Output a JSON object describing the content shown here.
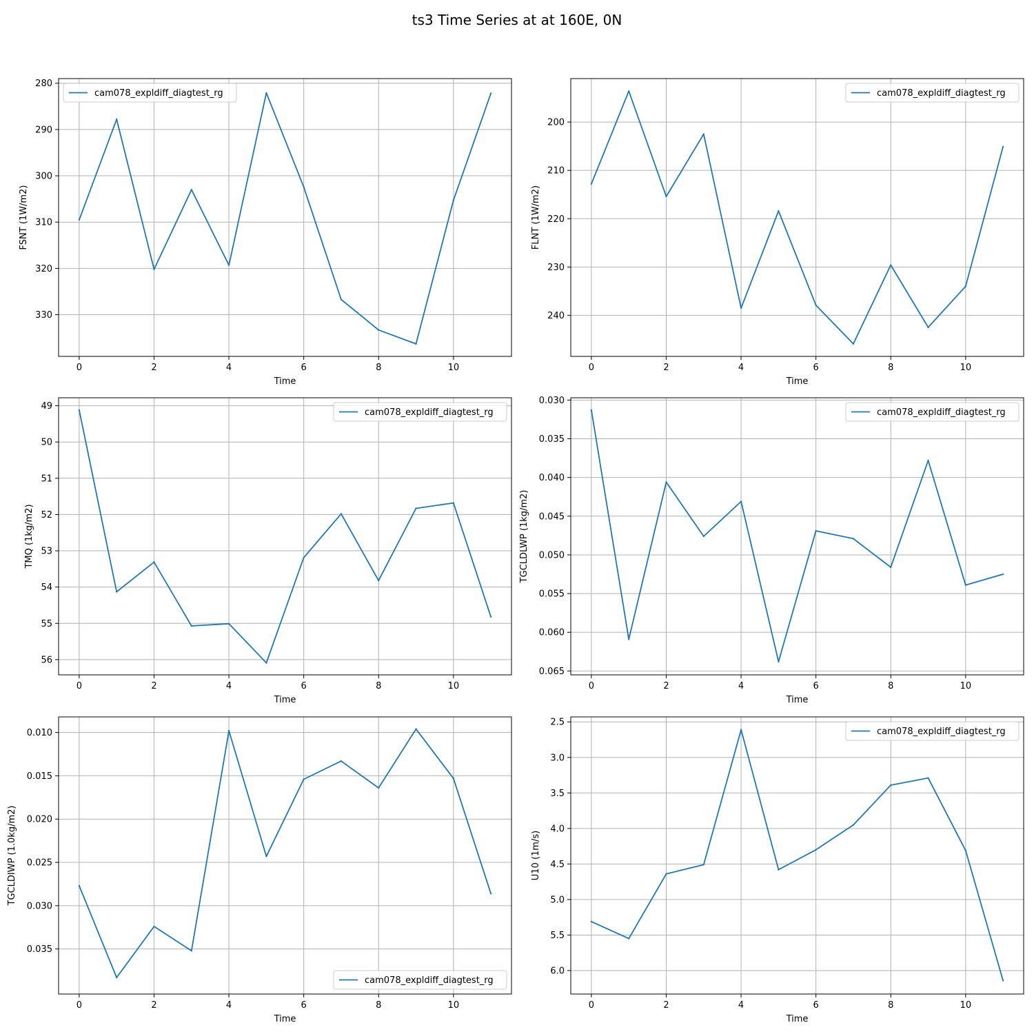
{
  "figure": {
    "title": "ts3 Time Series at at 160E, 0N",
    "line_color": "#1f77b4",
    "grid_color": "#b0b0b0"
  },
  "chart_data": [
    {
      "type": "line",
      "xlabel": "Time",
      "ylabel": "FSNT (1W/m2)",
      "xlim": [
        -0.55,
        11.55
      ],
      "ylim": [
        339,
        279
      ],
      "y_inverted": true,
      "x_ticks": [
        0,
        2,
        4,
        6,
        8,
        10
      ],
      "y_ticks": [
        280,
        290,
        300,
        310,
        320,
        330
      ],
      "y_tick_labels": [
        "280",
        "290",
        "300",
        "310",
        "320",
        "330"
      ],
      "grid": true,
      "legend_position": "upper left",
      "series": [
        {
          "name": "cam078_expldiff_diagtest_rg",
          "x": [
            0,
            1,
            2,
            3,
            4,
            5,
            6,
            7,
            8,
            9,
            10,
            11
          ],
          "y": [
            309.5,
            287.8,
            320.2,
            303.0,
            319.3,
            282.1,
            302.4,
            326.7,
            333.3,
            336.3,
            305.3,
            282.2
          ]
        }
      ]
    },
    {
      "type": "line",
      "xlabel": "Time",
      "ylabel": "FLNT (1W/m2)",
      "xlim": [
        -0.55,
        11.55
      ],
      "ylim": [
        248.5,
        191
      ],
      "y_inverted": true,
      "x_ticks": [
        0,
        2,
        4,
        6,
        8,
        10
      ],
      "y_ticks": [
        200,
        210,
        220,
        230,
        240
      ],
      "y_tick_labels": [
        "200",
        "210",
        "220",
        "230",
        "240"
      ],
      "grid": true,
      "legend_position": "upper right",
      "series": [
        {
          "name": "cam078_expldiff_diagtest_rg",
          "x": [
            0,
            1,
            2,
            3,
            4,
            5,
            6,
            7,
            8,
            9,
            10,
            11
          ],
          "y": [
            212.8,
            193.6,
            215.4,
            202.5,
            238.5,
            218.4,
            237.9,
            245.9,
            229.6,
            242.5,
            234.0,
            205.1
          ]
        }
      ]
    },
    {
      "type": "line",
      "xlabel": "Time",
      "ylabel": "TMQ (1kg/m2)",
      "xlim": [
        -0.55,
        11.55
      ],
      "ylim": [
        56.42,
        48.78
      ],
      "y_inverted": true,
      "x_ticks": [
        0,
        2,
        4,
        6,
        8,
        10
      ],
      "y_ticks": [
        49,
        50,
        51,
        52,
        53,
        54,
        55,
        56
      ],
      "y_tick_labels": [
        "49",
        "50",
        "51",
        "52",
        "53",
        "54",
        "55",
        "56"
      ],
      "grid": true,
      "legend_position": "upper right",
      "series": [
        {
          "name": "cam078_expldiff_diagtest_rg",
          "x": [
            0,
            1,
            2,
            3,
            4,
            5,
            6,
            7,
            8,
            9,
            10,
            11
          ],
          "y": [
            49.12,
            54.13,
            53.31,
            55.07,
            55.01,
            56.09,
            53.19,
            51.98,
            53.82,
            51.83,
            51.68,
            54.82
          ]
        }
      ]
    },
    {
      "type": "line",
      "xlabel": "Time",
      "ylabel": "TGCLDLWP (1kg/m2)",
      "xlim": [
        -0.55,
        11.55
      ],
      "ylim": [
        0.0655,
        0.0297
      ],
      "y_inverted": true,
      "x_ticks": [
        0,
        2,
        4,
        6,
        8,
        10
      ],
      "y_ticks": [
        0.03,
        0.035,
        0.04,
        0.045,
        0.05,
        0.055,
        0.06,
        0.065
      ],
      "y_tick_labels": [
        "0.030",
        "0.035",
        "0.040",
        "0.045",
        "0.050",
        "0.055",
        "0.060",
        "0.065"
      ],
      "grid": true,
      "legend_position": "upper right",
      "series": [
        {
          "name": "cam078_expldiff_diagtest_rg",
          "x": [
            0,
            1,
            2,
            3,
            4,
            5,
            6,
            7,
            8,
            9,
            10,
            11
          ],
          "y": [
            0.0313,
            0.0609,
            0.0406,
            0.0476,
            0.0431,
            0.0638,
            0.0469,
            0.0479,
            0.0516,
            0.0378,
            0.0539,
            0.0525
          ]
        }
      ]
    },
    {
      "type": "line",
      "xlabel": "Time",
      "ylabel": "TGCLDIWP (1.0kg/m2)",
      "xlim": [
        -0.55,
        11.55
      ],
      "ylim": [
        0.0402,
        0.0082
      ],
      "y_inverted": true,
      "x_ticks": [
        0,
        2,
        4,
        6,
        8,
        10
      ],
      "y_ticks": [
        0.01,
        0.015,
        0.02,
        0.025,
        0.03,
        0.035
      ],
      "y_tick_labels": [
        "0.010",
        "0.015",
        "0.020",
        "0.025",
        "0.030",
        "0.035"
      ],
      "grid": true,
      "legend_position": "lower right",
      "series": [
        {
          "name": "cam078_expldiff_diagtest_rg",
          "x": [
            0,
            1,
            2,
            3,
            4,
            5,
            6,
            7,
            8,
            9,
            10,
            11
          ],
          "y": [
            0.0277,
            0.0383,
            0.0324,
            0.0352,
            0.0098,
            0.0243,
            0.0154,
            0.0133,
            0.0164,
            0.0096,
            0.0153,
            0.0286
          ]
        }
      ]
    },
    {
      "type": "line",
      "xlabel": "Time",
      "ylabel": "U10 (1m/s)",
      "xlim": [
        -0.55,
        11.55
      ],
      "ylim": [
        6.33,
        2.43
      ],
      "y_inverted": true,
      "x_ticks": [
        0,
        2,
        4,
        6,
        8,
        10
      ],
      "y_ticks": [
        2.5,
        3.0,
        3.5,
        4.0,
        4.5,
        5.0,
        5.5,
        6.0
      ],
      "y_tick_labels": [
        "2.5",
        "3.0",
        "3.5",
        "4.0",
        "4.5",
        "5.0",
        "5.5",
        "6.0"
      ],
      "grid": true,
      "legend_position": "upper right",
      "series": [
        {
          "name": "cam078_expldiff_diagtest_rg",
          "x": [
            0,
            1,
            2,
            3,
            4,
            5,
            6,
            7,
            8,
            9,
            10,
            11
          ],
          "y": [
            5.31,
            5.55,
            4.64,
            4.51,
            2.61,
            4.58,
            4.3,
            3.95,
            3.39,
            3.29,
            4.31,
            6.14
          ]
        }
      ]
    }
  ]
}
